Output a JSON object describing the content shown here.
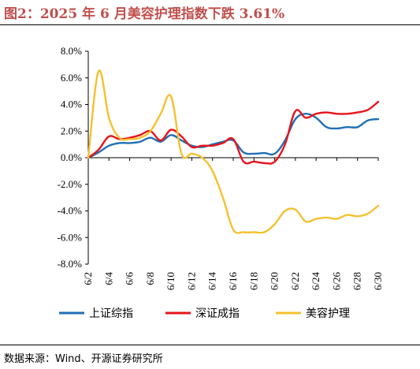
{
  "header": {
    "title": "图2：2025 年 6 月美容护理指数下跌 3.61%"
  },
  "footer": {
    "source": "数据来源：Wind、开源证券研究所"
  },
  "chart_data": {
    "type": "line",
    "title": "图2：2025 年 6 月美容护理指数下跌 3.61%",
    "xlabel": "",
    "ylabel": "",
    "ylim": [
      -8,
      8
    ],
    "y_ticks": [
      "8.0%",
      "6.0%",
      "4.0%",
      "2.0%",
      "0.0%",
      "-2.0%",
      "-4.0%",
      "-6.0%",
      "-8.0%"
    ],
    "x_tick_labels": [
      "6/2",
      "6/4",
      "6/6",
      "6/8",
      "6/10",
      "6/12",
      "6/14",
      "6/16",
      "6/18",
      "6/20",
      "6/22",
      "6/24",
      "6/26",
      "6/28",
      "6/30"
    ],
    "x": [
      2,
      3,
      4,
      5,
      6,
      7,
      8,
      9,
      10,
      11,
      12,
      13,
      14,
      15,
      16,
      17,
      18,
      19,
      20,
      21,
      22,
      23,
      24,
      25,
      26,
      27,
      28,
      29,
      30
    ],
    "legend_position": "bottom",
    "grid": false,
    "series": [
      {
        "name": "上证综指",
        "color": "#1f6fb5",
        "values": [
          0.0,
          0.4,
          0.9,
          1.1,
          1.1,
          1.2,
          1.5,
          1.2,
          1.7,
          1.3,
          0.9,
          0.8,
          1.0,
          1.2,
          1.3,
          0.4,
          0.3,
          0.35,
          0.3,
          1.3,
          2.9,
          3.3,
          3.0,
          2.3,
          2.2,
          2.3,
          2.3,
          2.8,
          2.9
        ]
      },
      {
        "name": "深证成指",
        "color": "#e8141b",
        "values": [
          0.0,
          0.6,
          1.6,
          1.4,
          1.5,
          1.7,
          2.0,
          1.3,
          2.1,
          1.6,
          0.8,
          0.9,
          0.9,
          1.1,
          1.4,
          -0.3,
          -0.3,
          -0.4,
          -0.3,
          1.0,
          3.5,
          3.0,
          3.3,
          3.4,
          3.3,
          3.3,
          3.4,
          3.6,
          4.2
        ]
      },
      {
        "name": "美容护理",
        "color": "#f5c12e",
        "values": [
          0.0,
          6.5,
          3.0,
          1.5,
          1.4,
          1.5,
          2.0,
          3.3,
          4.6,
          0.3,
          0.3,
          0.0,
          -1.0,
          -3.0,
          -5.4,
          -5.6,
          -5.6,
          -5.6,
          -5.0,
          -4.0,
          -3.9,
          -4.8,
          -4.6,
          -4.5,
          -4.6,
          -4.3,
          -4.4,
          -4.2,
          -3.6
        ]
      }
    ]
  }
}
